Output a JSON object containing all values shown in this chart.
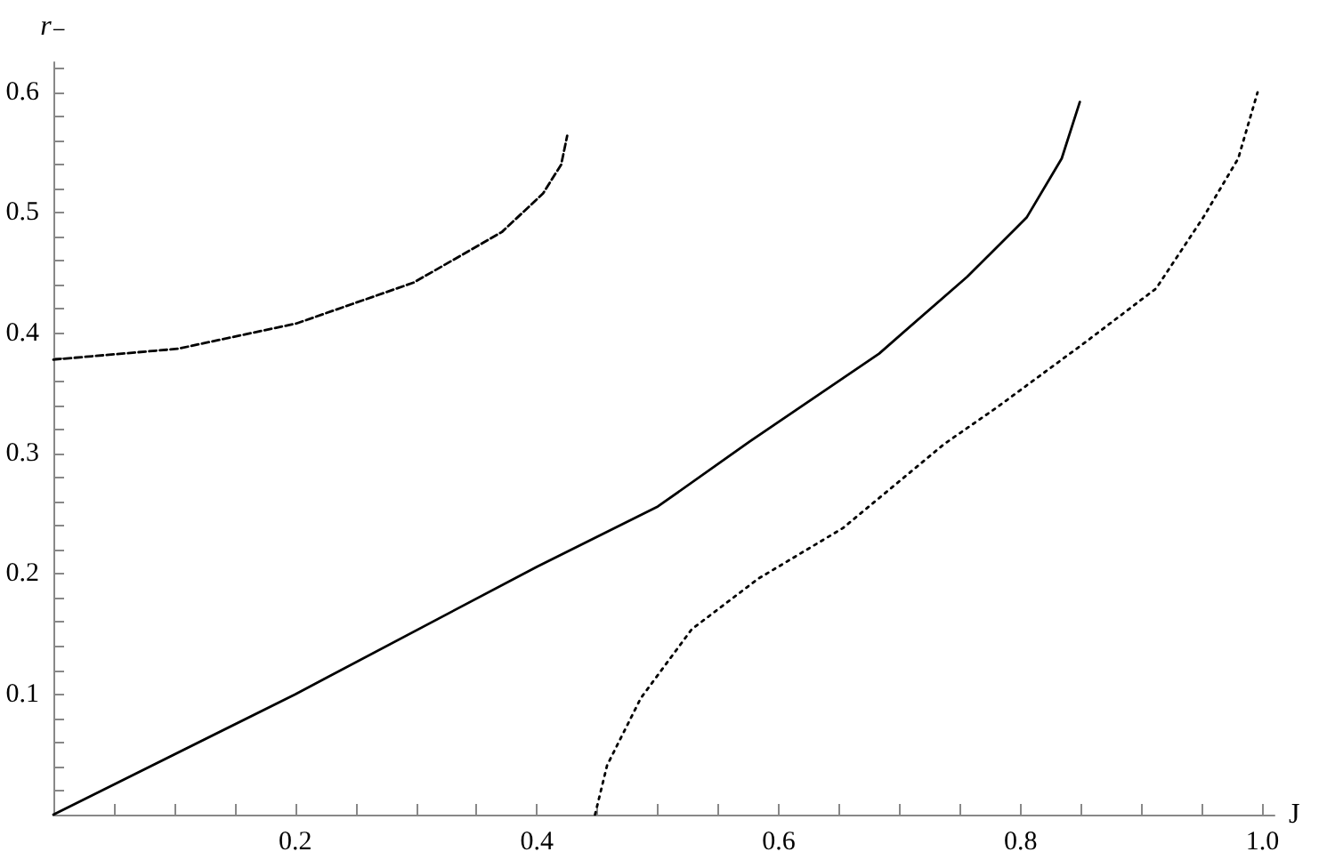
{
  "chart_data": {
    "type": "line",
    "xlabel": "J",
    "ylabel": "r₋",
    "xlim": [
      0,
      1.01
    ],
    "ylim": [
      0,
      0.625
    ],
    "xticks": [
      {
        "value": 0.05,
        "label": null
      },
      {
        "value": 0.1,
        "label": null
      },
      {
        "value": 0.15,
        "label": null
      },
      0.2,
      {
        "value": 0.25,
        "label": null
      },
      {
        "value": 0.3,
        "label": null
      },
      {
        "value": 0.35,
        "label": null
      },
      0.4,
      {
        "value": 0.45,
        "label": null
      },
      {
        "value": 0.5,
        "label": null
      },
      {
        "value": 0.55,
        "label": null
      },
      0.6,
      {
        "value": 0.65,
        "label": null
      },
      {
        "value": 0.7,
        "label": null
      },
      {
        "value": 0.75,
        "label": null
      },
      0.8,
      {
        "value": 0.85,
        "label": null
      },
      {
        "value": 0.9,
        "label": null
      },
      {
        "value": 0.95,
        "label": null
      },
      {
        "value": 1.0,
        "label": "1.0"
      }
    ],
    "yticks": [
      {
        "value": 0.02,
        "label": null
      },
      {
        "value": 0.04,
        "label": null
      },
      {
        "value": 0.06,
        "label": null
      },
      {
        "value": 0.08,
        "label": null
      },
      0.1,
      {
        "value": 0.12,
        "label": null
      },
      {
        "value": 0.14,
        "label": null
      },
      {
        "value": 0.16,
        "label": null
      },
      {
        "value": 0.18,
        "label": null
      },
      0.2,
      {
        "value": 0.22,
        "label": null
      },
      {
        "value": 0.24,
        "label": null
      },
      {
        "value": 0.26,
        "label": null
      },
      {
        "value": 0.28,
        "label": null
      },
      0.3,
      {
        "value": 0.32,
        "label": null
      },
      {
        "value": 0.34,
        "label": null
      },
      {
        "value": 0.36,
        "label": null
      },
      {
        "value": 0.38,
        "label": null
      },
      0.4,
      {
        "value": 0.42,
        "label": null
      },
      {
        "value": 0.44,
        "label": null
      },
      {
        "value": 0.46,
        "label": null
      },
      {
        "value": 0.48,
        "label": null
      },
      0.5,
      {
        "value": 0.52,
        "label": null
      },
      {
        "value": 0.54,
        "label": null
      },
      {
        "value": 0.56,
        "label": null
      },
      {
        "value": 0.58,
        "label": null
      },
      0.6,
      {
        "value": 0.62,
        "label": null
      }
    ],
    "grid": false,
    "marker": "none",
    "series": [
      {
        "color": "#000000",
        "line_style": "dashed",
        "x": [
          0,
          0.103,
          0.201,
          0.298,
          0.371,
          0.405,
          0.42,
          0.425
        ],
        "values": [
          0.378,
          0.387,
          0.408,
          0.442,
          0.484,
          0.516,
          0.54,
          0.564
        ]
      },
      {
        "color": "#000000",
        "line_style": "solid",
        "x": [
          0,
          0.2,
          0.4,
          0.5,
          0.576,
          0.683,
          0.756,
          0.805,
          0.834,
          0.849
        ],
        "values": [
          0,
          0.1,
          0.206,
          0.256,
          0.31,
          0.383,
          0.447,
          0.496,
          0.545,
          0.592
        ]
      },
      {
        "color": "#000000",
        "line_style": "dotted",
        "x": [
          0.448,
          0.458,
          0.486,
          0.528,
          0.583,
          0.653,
          0.737,
          0.78,
          0.853,
          0.912,
          0.951,
          0.98,
          0.996
        ],
        "values": [
          0,
          0.041,
          0.097,
          0.154,
          0.196,
          0.238,
          0.308,
          0.338,
          0.392,
          0.437,
          0.496,
          0.545,
          0.6
        ]
      }
    ]
  }
}
